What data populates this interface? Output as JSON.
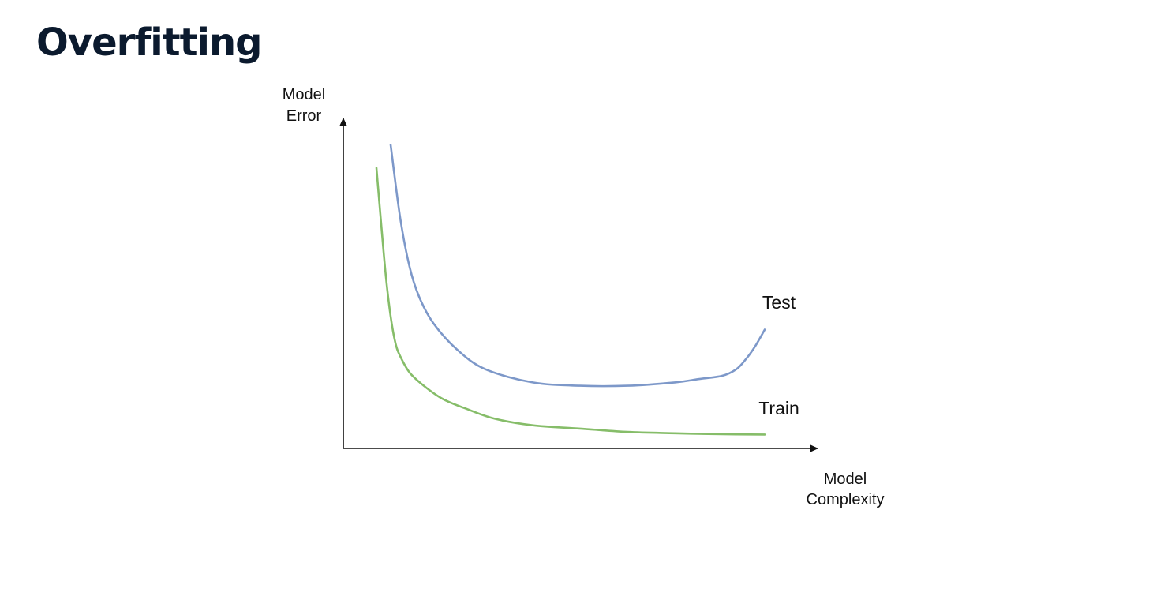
{
  "slide": {
    "title": "Overfitting"
  },
  "chart_data": {
    "type": "line",
    "title": "",
    "ylabel_lines": [
      "Model",
      "Error"
    ],
    "xlabel_lines": [
      "Model",
      "Complexity"
    ],
    "ticks_shown": false,
    "grid": false,
    "xlim": [
      0,
      100
    ],
    "ylim": [
      0,
      100
    ],
    "series": [
      {
        "name": "Test",
        "color": "#7d98c9",
        "x": [
          10,
          12,
          14,
          16,
          19,
          24,
          30,
          40,
          50,
          60,
          70,
          75,
          80,
          83,
          85,
          87,
          89
        ],
        "y": [
          92,
          70,
          55,
          46,
          38,
          30,
          24,
          20,
          19,
          19,
          20,
          21,
          22,
          24,
          27,
          31,
          36
        ]
      },
      {
        "name": "Train",
        "color": "#86bd69",
        "x": [
          7,
          8,
          9,
          10,
          11,
          12,
          14,
          17,
          21,
          26,
          32,
          40,
          50,
          60,
          70,
          80,
          89
        ],
        "y": [
          85,
          68,
          52,
          40,
          32,
          28,
          23,
          19,
          15,
          12,
          9,
          7,
          6,
          5,
          4.6,
          4.3,
          4.2
        ]
      }
    ]
  }
}
